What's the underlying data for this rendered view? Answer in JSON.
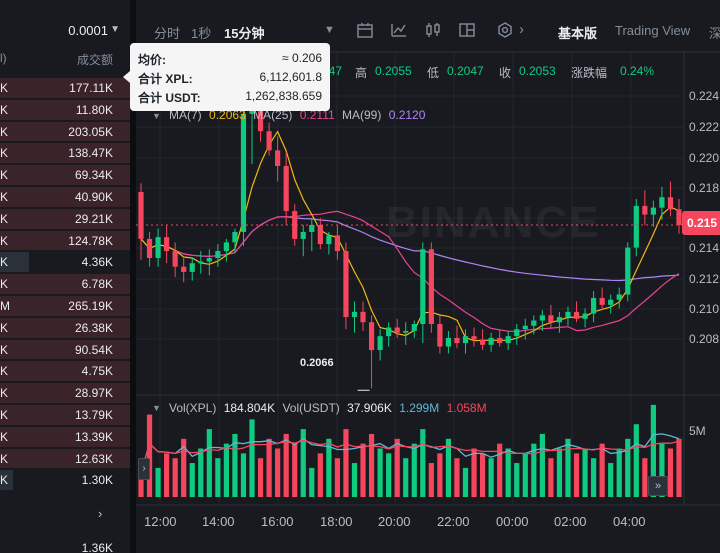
{
  "order_book": {
    "selector_value": "0.0001",
    "col_left": "l)",
    "col_amount": "成交额",
    "rows": [
      {
        "side": "K",
        "amount": "177.11K",
        "fill": 1.0
      },
      {
        "side": "K",
        "amount": "11.80K",
        "fill": 1.0
      },
      {
        "side": "K",
        "amount": "203.05K",
        "fill": 1.0
      },
      {
        "side": "K",
        "amount": "138.47K",
        "fill": 1.0
      },
      {
        "side": "K",
        "amount": "69.34K",
        "fill": 1.0
      },
      {
        "side": "K",
        "amount": "40.90K",
        "fill": 1.0
      },
      {
        "side": "K",
        "amount": "29.21K",
        "fill": 1.0
      },
      {
        "side": "K",
        "amount": "124.78K",
        "fill": 1.0
      },
      {
        "side": "K",
        "amount": "4.36K",
        "fill": 0.22,
        "highlight": true
      },
      {
        "side": "K",
        "amount": "6.78K",
        "fill": 1.0
      },
      {
        "side": "M",
        "amount": "265.19K",
        "fill": 1.0
      },
      {
        "side": "K",
        "amount": "26.38K",
        "fill": 1.0
      },
      {
        "side": "K",
        "amount": "90.54K",
        "fill": 1.0
      },
      {
        "side": "K",
        "amount": "4.75K",
        "fill": 1.0
      },
      {
        "side": "K",
        "amount": "28.97K",
        "fill": 1.0
      },
      {
        "side": "K",
        "amount": "13.79K",
        "fill": 1.0
      },
      {
        "side": "K",
        "amount": "13.39K",
        "fill": 1.0
      },
      {
        "side": "K",
        "amount": "12.63K",
        "fill": 1.0
      },
      {
        "side": "K",
        "amount": "1.30K",
        "fill": 0.1,
        "highlight": true
      }
    ],
    "bottom_amount": "1.36K"
  },
  "toolbar": {
    "time_label": "分时",
    "sec_label": "1秒",
    "interval_label": "15分钟",
    "basic_label": "基本版",
    "tradingview_label": "Trading View",
    "depth_label": "深"
  },
  "ohlc": {
    "open_value": "047",
    "high_label": "高",
    "high_value": "0.2055",
    "low_label": "低",
    "low_value": "0.2047",
    "close_label": "收",
    "close_value": "0.2053",
    "change_label": "涨跌幅",
    "change_value": "0.24%"
  },
  "ma": {
    "ma7_label": "MA(7)",
    "ma7_value": "0.2063",
    "ma25_label": "MA(25)",
    "ma25_value": "0.2111",
    "ma99_label": "MA(99)",
    "ma99_value": "0.2120"
  },
  "volume": {
    "label": "Vol(XPL)",
    "value": "184.804K",
    "usdt_label": "Vol(USDT)",
    "usdt_value": "37.906K",
    "blue_value": "1.299M",
    "red_value": "1.058M",
    "axis_label": "5M"
  },
  "tooltip": {
    "avg_label": "均价:",
    "avg_value": "≈ 0.206",
    "xpl_label": "合计 XPL:",
    "xpl_value": "6,112,601.8",
    "usdt_label": "合计 USDT:",
    "usdt_value": "1,262,838.659"
  },
  "chart": {
    "watermark": "BINANCE",
    "current_price": "0.215",
    "low_marker": "0.2066",
    "y_labels": [
      "0.224",
      "0.222",
      "0.220",
      "0.218",
      "0.214",
      "0.212",
      "0.210",
      "0.208"
    ],
    "x_labels": [
      "12:00",
      "14:00",
      "16:00",
      "18:00",
      "20:00",
      "22:00",
      "00:00",
      "02:00",
      "04:00"
    ]
  },
  "colors": {
    "up": "#0ecb81",
    "down": "#f6465d",
    "ma7": "#f0b90b",
    "ma25": "#e84393",
    "ma99": "#b084f5",
    "vol_blue": "#5fb8d6"
  },
  "chart_data": {
    "type": "candlestick",
    "ylim": [
      0.2065,
      0.2255
    ],
    "candles": [
      [
        0.2179,
        0.2184,
        0.214,
        0.2152
      ],
      [
        0.2152,
        0.2156,
        0.2136,
        0.2141
      ],
      [
        0.2141,
        0.2158,
        0.2136,
        0.2153
      ],
      [
        0.2153,
        0.216,
        0.2138,
        0.2145
      ],
      [
        0.2145,
        0.215,
        0.213,
        0.2136
      ],
      [
        0.2136,
        0.2141,
        0.2127,
        0.2133
      ],
      [
        0.2133,
        0.2141,
        0.2128,
        0.2138
      ],
      [
        0.2138,
        0.2145,
        0.2132,
        0.2139
      ],
      [
        0.2139,
        0.2146,
        0.2131,
        0.2141
      ],
      [
        0.2141,
        0.2149,
        0.2136,
        0.2145
      ],
      [
        0.2145,
        0.2152,
        0.2139,
        0.215
      ],
      [
        0.215,
        0.2158,
        0.2144,
        0.2156
      ],
      [
        0.2156,
        0.2232,
        0.2148,
        0.2224
      ],
      [
        0.2224,
        0.2245,
        0.2195,
        0.2234
      ],
      [
        0.2234,
        0.224,
        0.2208,
        0.2214
      ],
      [
        0.2214,
        0.2219,
        0.22,
        0.2203
      ],
      [
        0.2203,
        0.2211,
        0.2185,
        0.2194
      ],
      [
        0.2194,
        0.2202,
        0.216,
        0.2168
      ],
      [
        0.2168,
        0.2172,
        0.2148,
        0.2152
      ],
      [
        0.2152,
        0.216,
        0.2142,
        0.2156
      ],
      [
        0.2156,
        0.2164,
        0.2145,
        0.216
      ],
      [
        0.216,
        0.2164,
        0.2146,
        0.2149
      ],
      [
        0.2149,
        0.2156,
        0.2143,
        0.2154
      ],
      [
        0.2154,
        0.216,
        0.214,
        0.2145
      ],
      [
        0.2145,
        0.215,
        0.21,
        0.2107
      ],
      [
        0.2107,
        0.2116,
        0.2098,
        0.211
      ],
      [
        0.211,
        0.2116,
        0.2099,
        0.2104
      ],
      [
        0.2104,
        0.2108,
        0.2066,
        0.2088
      ],
      [
        0.2088,
        0.21,
        0.2082,
        0.2096
      ],
      [
        0.2096,
        0.2104,
        0.209,
        0.2101
      ],
      [
        0.2101,
        0.2106,
        0.2095,
        0.2098
      ],
      [
        0.2098,
        0.2104,
        0.2091,
        0.2099
      ],
      [
        0.2099,
        0.2105,
        0.2095,
        0.2103
      ],
      [
        0.2103,
        0.215,
        0.2092,
        0.2146
      ],
      [
        0.2146,
        0.215,
        0.2098,
        0.2103
      ],
      [
        0.2103,
        0.2108,
        0.2086,
        0.209
      ],
      [
        0.209,
        0.2099,
        0.2086,
        0.2095
      ],
      [
        0.2095,
        0.2102,
        0.2089,
        0.2092
      ],
      [
        0.2092,
        0.21,
        0.2086,
        0.2096
      ],
      [
        0.2096,
        0.2101,
        0.209,
        0.2094
      ],
      [
        0.2094,
        0.21,
        0.2088,
        0.2091
      ],
      [
        0.2091,
        0.2098,
        0.2087,
        0.2095
      ],
      [
        0.2095,
        0.21,
        0.209,
        0.2092
      ],
      [
        0.2092,
        0.2099,
        0.2088,
        0.2096
      ],
      [
        0.2096,
        0.2103,
        0.2091,
        0.21
      ],
      [
        0.21,
        0.2106,
        0.2094,
        0.2102
      ],
      [
        0.2102,
        0.2108,
        0.2097,
        0.2105
      ],
      [
        0.2105,
        0.2111,
        0.2099,
        0.2108
      ],
      [
        0.2108,
        0.2114,
        0.2101,
        0.2104
      ],
      [
        0.2104,
        0.211,
        0.2098,
        0.2107
      ],
      [
        0.2107,
        0.2113,
        0.2102,
        0.211
      ],
      [
        0.211,
        0.2116,
        0.2104,
        0.2106
      ],
      [
        0.2106,
        0.2112,
        0.2101,
        0.2109
      ],
      [
        0.2109,
        0.2122,
        0.2104,
        0.2118
      ],
      [
        0.2118,
        0.2124,
        0.2111,
        0.2114
      ],
      [
        0.2114,
        0.212,
        0.2109,
        0.2117
      ],
      [
        0.2117,
        0.2124,
        0.2112,
        0.212
      ],
      [
        0.212,
        0.215,
        0.2116,
        0.2147
      ],
      [
        0.2147,
        0.2175,
        0.2142,
        0.2171
      ],
      [
        0.2171,
        0.218,
        0.216,
        0.2166
      ],
      [
        0.2166,
        0.2174,
        0.2159,
        0.217
      ],
      [
        0.217,
        0.2182,
        0.2163,
        0.2176
      ],
      [
        0.2176,
        0.2185,
        0.2165,
        0.2169
      ],
      [
        0.2169,
        0.2175,
        0.2155,
        0.216
      ]
    ],
    "volume": [
      0.25,
      0.85,
      0.3,
      0.45,
      0.4,
      0.6,
      0.35,
      0.5,
      0.7,
      0.4,
      0.55,
      0.65,
      0.45,
      0.8,
      0.4,
      0.6,
      0.5,
      0.65,
      0.55,
      0.7,
      0.3,
      0.45,
      0.6,
      0.4,
      0.7,
      0.35,
      0.55,
      0.65,
      0.5,
      0.45,
      0.6,
      0.4,
      0.55,
      0.7,
      0.35,
      0.45,
      0.6,
      0.4,
      0.3,
      0.5,
      0.45,
      0.4,
      0.55,
      0.5,
      0.35,
      0.45,
      0.55,
      0.65,
      0.4,
      0.5,
      0.6,
      0.45,
      0.5,
      0.4,
      0.55,
      0.35,
      0.5,
      0.6,
      0.75,
      0.4,
      0.95,
      0.55,
      0.5,
      0.6
    ]
  }
}
